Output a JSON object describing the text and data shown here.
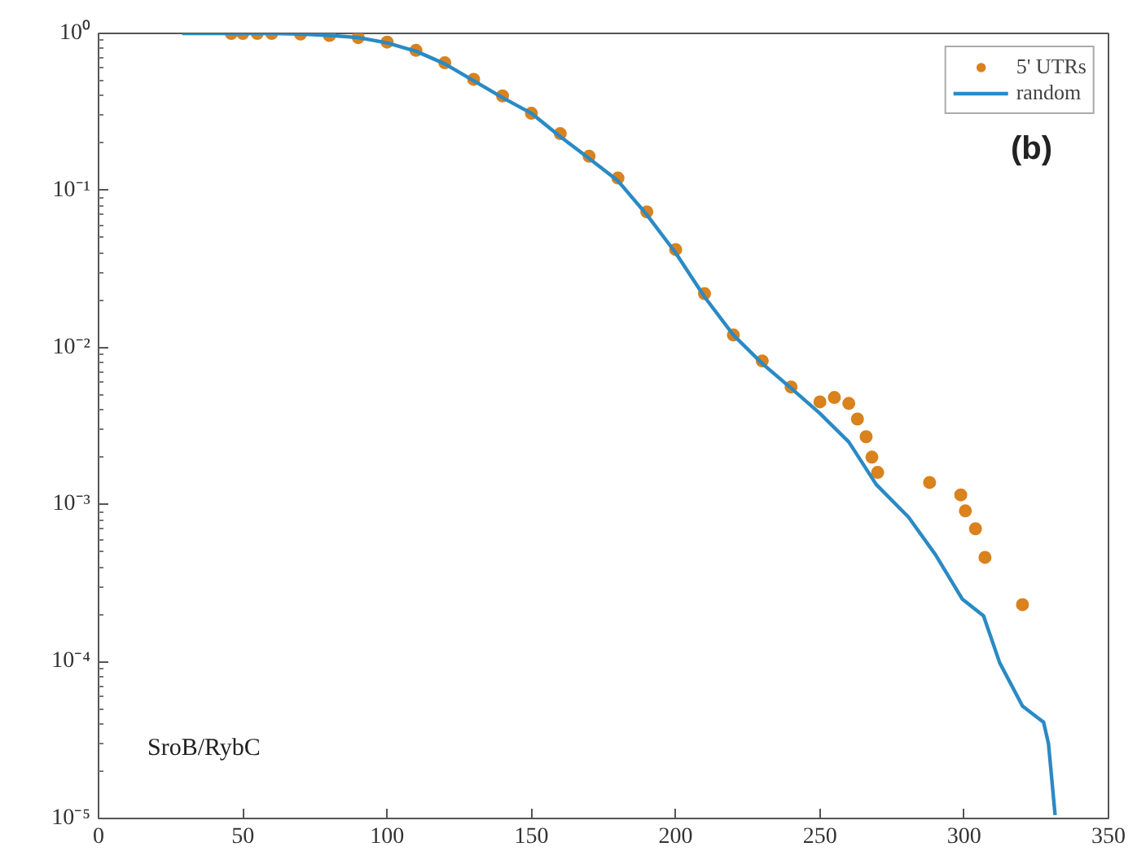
{
  "chart_data": {
    "type": "scatter",
    "log": "y",
    "grid": false,
    "legend": "top right",
    "xlim": [
      0,
      350
    ],
    "xticks": [
      0,
      50,
      100,
      150,
      200,
      250,
      300,
      350
    ],
    "ylim": [
      1e-05,
      1
    ],
    "yticks": [
      {
        "value": 1e-05,
        "label": "10⁻⁵"
      },
      {
        "value": 0.0001,
        "label": "10⁻⁴"
      },
      {
        "value": 0.001,
        "label": "10⁻³"
      },
      {
        "value": 0.01,
        "label": "10⁻²"
      },
      {
        "value": 0.1,
        "label": "10⁻¹"
      },
      {
        "value": 1,
        "label": "10⁰"
      }
    ],
    "annotations": [
      "(b)",
      "SroB/RybC"
    ],
    "series": [
      {
        "name": "5' UTRs",
        "marker": "circle",
        "color": "#d9821e",
        "x": [
          46,
          50,
          55,
          60,
          70,
          80,
          90,
          100,
          110,
          120,
          130,
          140,
          150,
          160,
          170,
          180,
          190,
          200,
          210,
          220,
          230,
          240,
          250,
          255,
          260,
          263,
          266,
          268,
          270,
          288,
          298.8,
          300.4,
          303.9,
          307.2,
          320.2
        ],
        "values": [
          1,
          1,
          1,
          1,
          0.99,
          0.97,
          0.94,
          0.88,
          0.78,
          0.65,
          0.51,
          0.4,
          0.31,
          0.23,
          0.165,
          0.12,
          0.073,
          0.042,
          0.022,
          0.012,
          0.0082,
          0.0056,
          0.0045,
          0.0048,
          0.0044,
          0.0035,
          0.0027,
          0.002,
          0.0016,
          0.00138,
          0.00115,
          0.00091,
          0.0007,
          0.00046,
          0.00023
        ]
      },
      {
        "name": "random",
        "type": "line",
        "line_style": "solid",
        "marker": "none",
        "color": "#2a8ac4",
        "x": [
          29,
          46,
          60,
          70,
          80,
          90,
          100,
          110,
          120,
          130,
          140,
          150,
          160,
          170,
          180,
          190,
          200,
          210,
          220,
          230,
          240,
          250,
          260,
          269.5,
          280.7,
          290,
          299.3,
          306.7,
          312.3,
          320.2,
          327.5,
          329.2,
          331.5
        ],
        "values": [
          1,
          1,
          1,
          0.99,
          0.97,
          0.94,
          0.87,
          0.77,
          0.64,
          0.5,
          0.39,
          0.31,
          0.22,
          0.16,
          0.115,
          0.07,
          0.04,
          0.021,
          0.012,
          0.0079,
          0.0055,
          0.0038,
          0.0025,
          0.00134,
          0.00083,
          0.00048,
          0.00025,
          0.000195,
          9.8e-05,
          5.2e-05,
          4.1e-05,
          3e-05,
          1.05e-05
        ]
      }
    ]
  }
}
